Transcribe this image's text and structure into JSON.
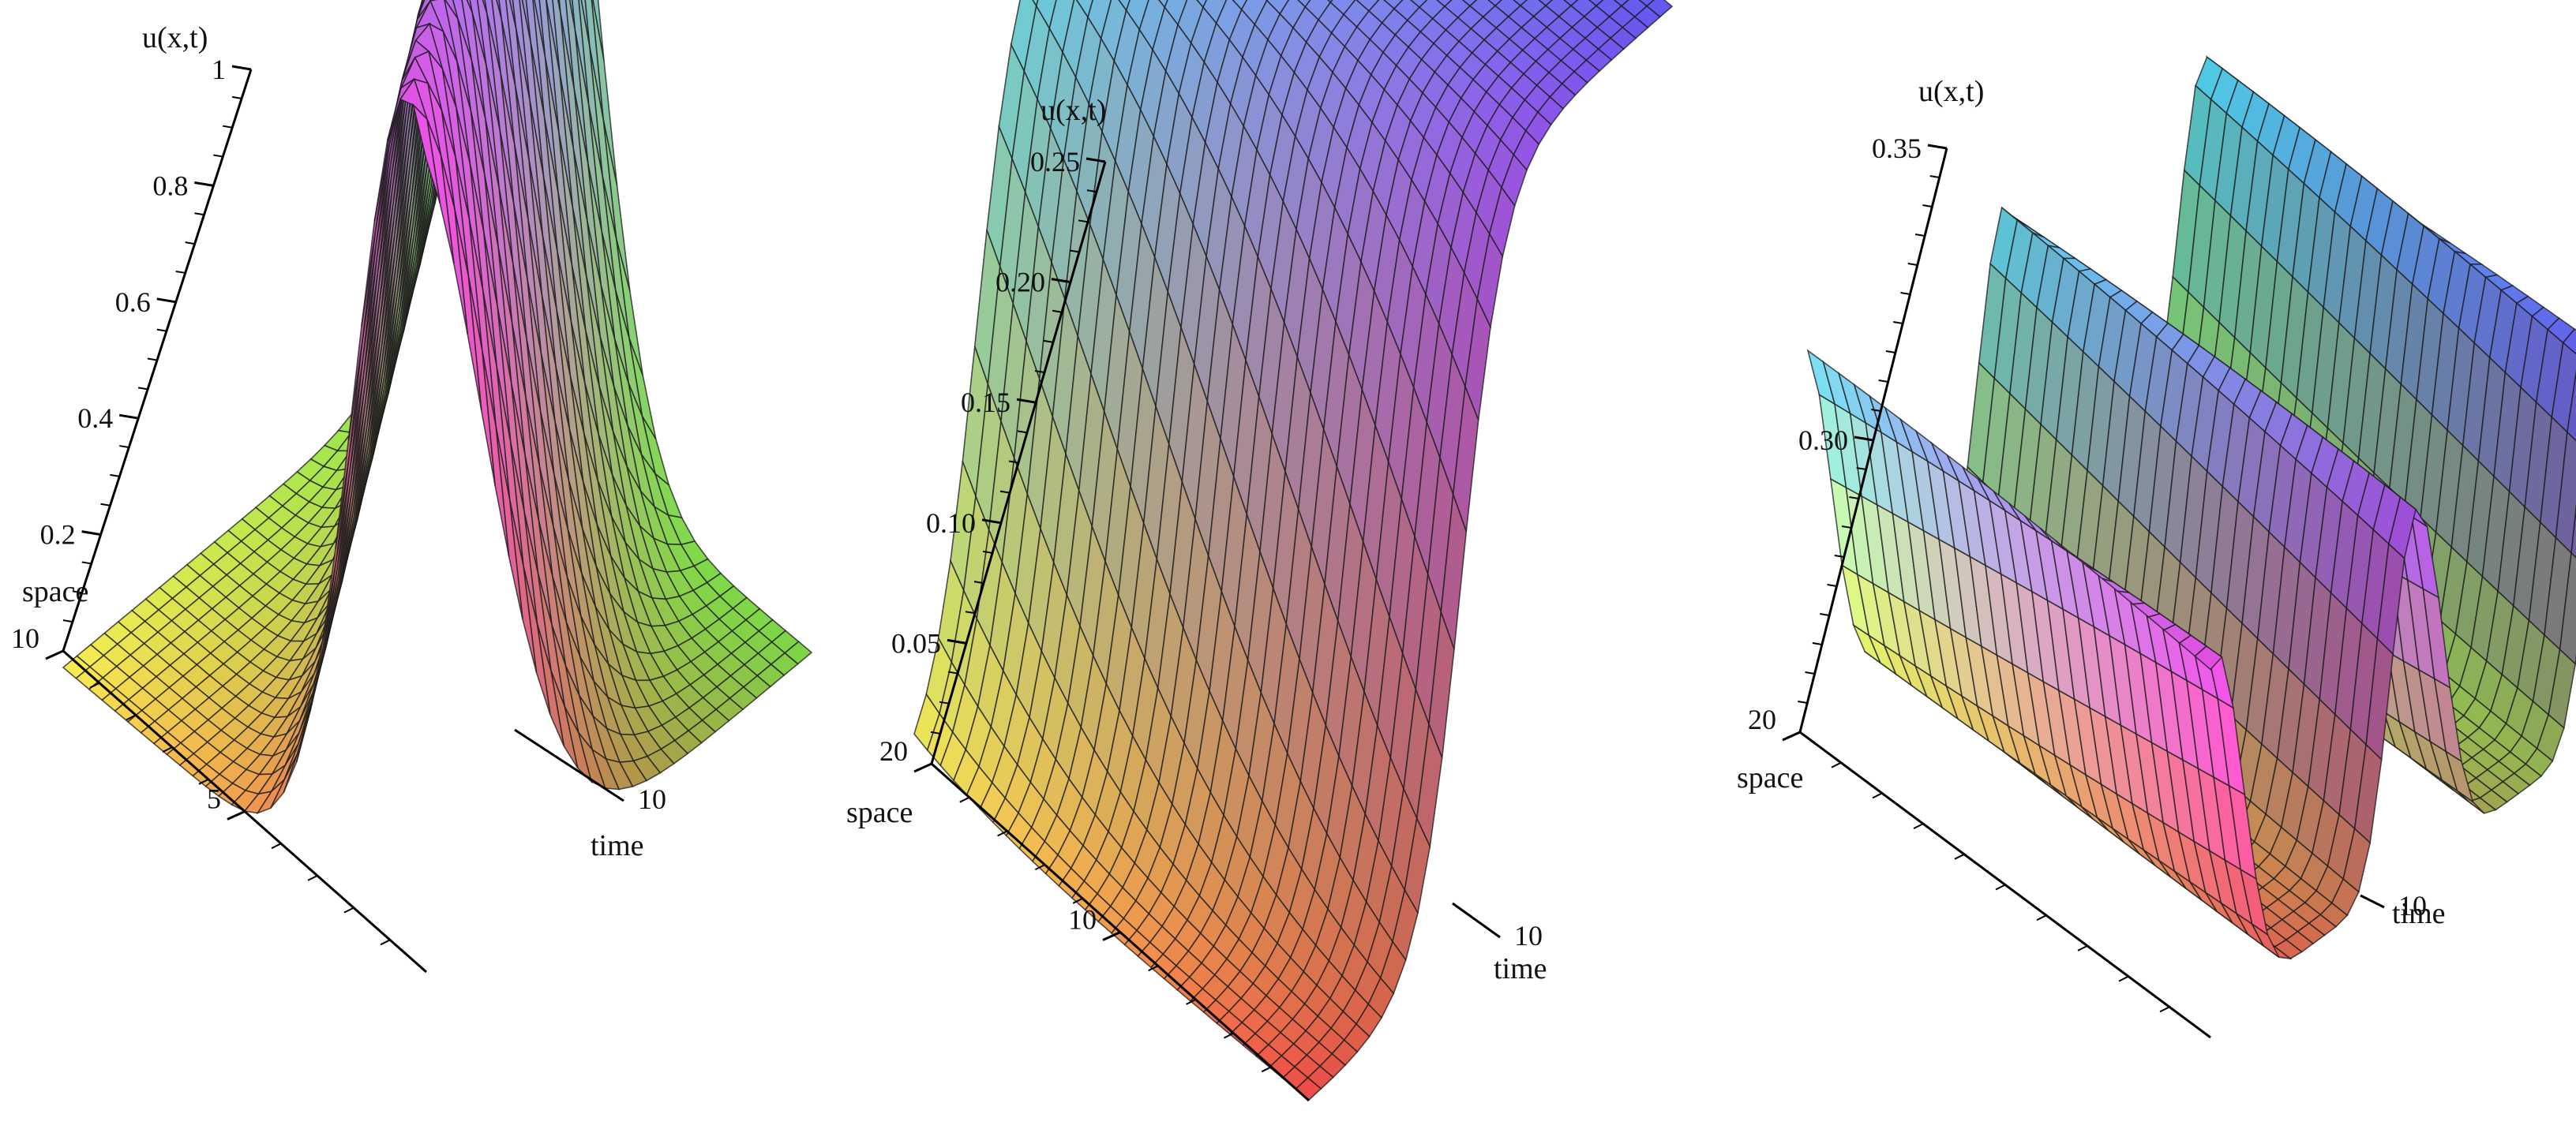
{
  "chart_data": [
    {
      "type": "surface3d",
      "profile": "soliton-hump",
      "palette": "rainbow",
      "zlabel": "u(x,t)",
      "xlabel": "space",
      "tlabel": "time",
      "z_ticks": [
        {
          "value": 1,
          "text": "1"
        },
        {
          "value": 0.8,
          "text": "0.8"
        },
        {
          "value": 0.6,
          "text": "0.6"
        },
        {
          "value": 0.4,
          "text": "0.4"
        },
        {
          "value": 0.2,
          "text": "0.2"
        }
      ],
      "x_ticks": [
        {
          "value": 5,
          "text": "5"
        },
        {
          "value": 10,
          "text": "10"
        }
      ],
      "t_ticks": [
        {
          "value": 10,
          "text": "10"
        }
      ],
      "xlim": [
        0,
        10
      ],
      "tlim": [
        0,
        10
      ],
      "zlim": [
        0,
        1
      ],
      "grid": "mesh"
    },
    {
      "type": "surface3d",
      "profile": "kink",
      "palette": "rainbow",
      "zlabel": "u(x,t)",
      "xlabel": "space",
      "tlabel": "time",
      "z_ticks": [
        {
          "value": 0.25,
          "text": "0.25"
        },
        {
          "value": 0.2,
          "text": "0.20"
        },
        {
          "value": 0.15,
          "text": "0.15"
        },
        {
          "value": 0.1,
          "text": "0.10"
        },
        {
          "value": 0.05,
          "text": "0.05"
        }
      ],
      "x_ticks": [
        {
          "value": 10,
          "text": "10"
        },
        {
          "value": 20,
          "text": "20"
        }
      ],
      "t_ticks": [
        {
          "value": 10,
          "text": "10"
        }
      ],
      "xlim": [
        0,
        20
      ],
      "tlim": [
        0,
        10
      ],
      "zlim": [
        0,
        0.25
      ],
      "grid": "mesh"
    },
    {
      "type": "surface3d",
      "profile": "periodic-waves",
      "palette": "rainbow",
      "zlabel": "u(x,t)",
      "xlabel": "space",
      "tlabel": "time",
      "z_ticks": [
        {
          "value": 0.35,
          "text": "0.35"
        },
        {
          "value": 0.3,
          "text": "0.30"
        }
      ],
      "x_ticks": [
        {
          "value": 20,
          "text": "20"
        }
      ],
      "t_ticks": [
        {
          "value": 10,
          "text": "10"
        }
      ],
      "xlim": [
        0,
        20
      ],
      "tlim": [
        0,
        10
      ],
      "zlim": [
        0.25,
        0.37
      ],
      "grid": "mesh"
    }
  ]
}
